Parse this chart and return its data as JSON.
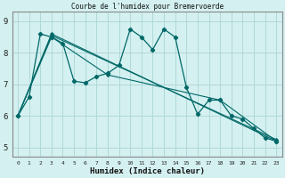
{
  "title": "Courbe de l'humidex pour Bremervoerde",
  "xlabel": "Humidex (Indice chaleur)",
  "bg_color": "#d4f0f0",
  "grid_color": "#b0d8d8",
  "line_color": "#006868",
  "xlim": [
    -0.5,
    23.5
  ],
  "ylim": [
    4.7,
    9.3
  ],
  "yticks": [
    5,
    6,
    7,
    8,
    9
  ],
  "xticks": [
    0,
    1,
    2,
    3,
    4,
    5,
    6,
    7,
    8,
    9,
    10,
    11,
    12,
    13,
    14,
    15,
    16,
    17,
    18,
    19,
    20,
    21,
    22,
    23
  ],
  "series": [
    {
      "x": [
        0,
        1,
        2,
        3,
        4,
        5,
        6,
        7,
        8,
        9,
        10,
        11,
        12,
        13,
        14,
        15,
        16,
        17,
        18,
        19,
        20,
        21,
        22,
        23
      ],
      "y": [
        6.0,
        6.6,
        8.6,
        8.5,
        8.3,
        7.1,
        7.05,
        7.25,
        7.35,
        7.6,
        8.75,
        8.5,
        8.1,
        8.75,
        8.5,
        6.9,
        6.05,
        6.5,
        6.5,
        6.0,
        5.9,
        5.6,
        5.3,
        5.2
      ]
    },
    {
      "x": [
        0,
        3,
        23
      ],
      "y": [
        6.0,
        8.6,
        5.2
      ]
    },
    {
      "x": [
        0,
        3,
        23
      ],
      "y": [
        6.0,
        8.55,
        5.25
      ]
    },
    {
      "x": [
        0,
        3,
        8,
        18,
        23
      ],
      "y": [
        6.0,
        8.5,
        7.3,
        6.5,
        5.2
      ]
    }
  ]
}
